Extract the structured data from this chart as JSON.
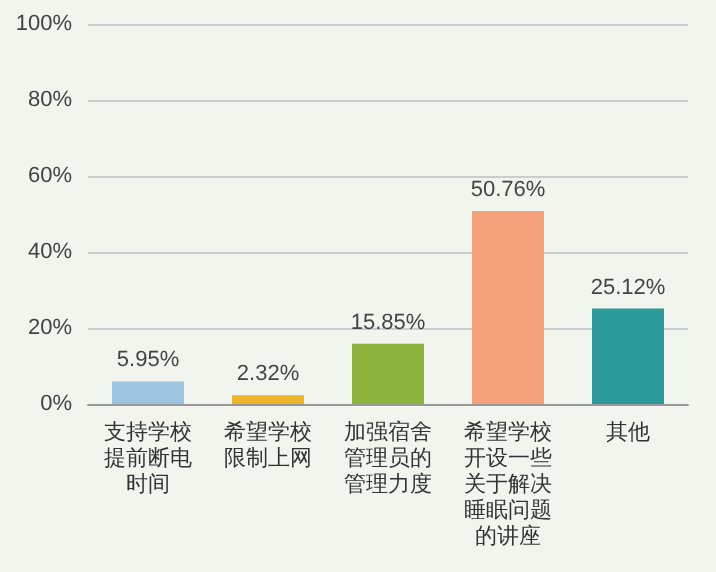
{
  "chart_data": {
    "type": "bar",
    "categories": [
      "支持学校提前断电时间",
      "希望学校限制上网",
      "加强宿舍管理员的管理力度",
      "希望学校开设一些关于解决睡眠问题的讲座",
      "其他"
    ],
    "values": [
      5.95,
      2.32,
      15.85,
      50.76,
      25.12
    ],
    "value_labels": [
      "5.95%",
      "2.32%",
      "15.85%",
      "50.76%",
      "25.12%"
    ],
    "colors": [
      "#9cc3e0",
      "#f0b429",
      "#8cb43c",
      "#f4a07a",
      "#2a9a9a"
    ],
    "ylim": [
      0,
      100
    ],
    "yticks": [
      {
        "value": 0,
        "label": "0%"
      },
      {
        "value": 20,
        "label": "20%"
      },
      {
        "value": 40,
        "label": "40%"
      },
      {
        "value": 60,
        "label": "60%"
      },
      {
        "value": 80,
        "label": "80%"
      },
      {
        "value": 100,
        "label": "100%"
      }
    ],
    "grid": "y"
  }
}
